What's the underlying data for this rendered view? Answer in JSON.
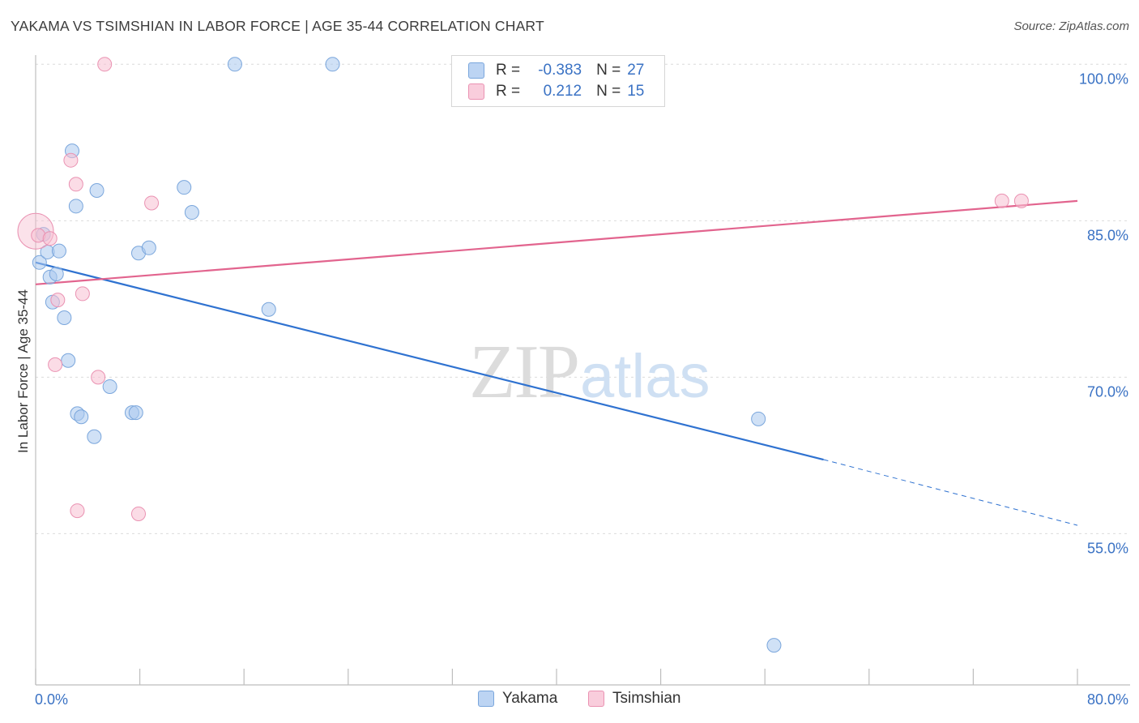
{
  "chart_data": {
    "type": "scatter",
    "title": "YAKAMA VS TSIMSHIAN IN LABOR FORCE | AGE 35-44 CORRELATION CHART",
    "source": "Source: ZipAtlas.com",
    "ylabel": "In Labor Force | Age 35-44",
    "xlabel": "",
    "xlim": [
      0,
      80
    ],
    "ylim": [
      40.5,
      101.5
    ],
    "x_tick_labels": [
      "0.0%",
      "80.0%"
    ],
    "y_ticks": [
      {
        "value": 100,
        "label": "100.0%"
      },
      {
        "value": 85,
        "label": "85.0%"
      },
      {
        "value": 70,
        "label": "70.0%"
      },
      {
        "value": 55,
        "label": "55.0%"
      }
    ],
    "watermark": "ZIPatlas",
    "legend": [
      {
        "name": "Yakama",
        "r_label": "R =",
        "r": "-0.383",
        "n_label": "N =",
        "n": "27"
      },
      {
        "name": "Tsimshian",
        "r_label": "R =",
        "r": "0.212",
        "n_label": "N =",
        "n": "15"
      }
    ],
    "series": [
      {
        "name": "Yakama",
        "color": "#a9c8ee",
        "stroke": "#7aa6dc",
        "line_color": "#2f72d0",
        "trend": {
          "x0": 0,
          "y0": 81.0,
          "x1": 60.5,
          "y1": 62.1,
          "dash_x1": 80,
          "dash_y1": 55.8
        },
        "points": [
          {
            "x": 0.3,
            "y": 81.0
          },
          {
            "x": 0.6,
            "y": 83.7
          },
          {
            "x": 0.9,
            "y": 82.0
          },
          {
            "x": 1.1,
            "y": 79.6
          },
          {
            "x": 1.3,
            "y": 77.2
          },
          {
            "x": 1.6,
            "y": 79.9
          },
          {
            "x": 1.8,
            "y": 82.1
          },
          {
            "x": 2.2,
            "y": 75.7
          },
          {
            "x": 2.5,
            "y": 71.6
          },
          {
            "x": 2.8,
            "y": 91.7
          },
          {
            "x": 3.1,
            "y": 86.4
          },
          {
            "x": 3.2,
            "y": 66.5
          },
          {
            "x": 3.5,
            "y": 66.2
          },
          {
            "x": 4.5,
            "y": 64.3
          },
          {
            "x": 4.7,
            "y": 87.9
          },
          {
            "x": 5.7,
            "y": 69.1
          },
          {
            "x": 7.4,
            "y": 66.6
          },
          {
            "x": 7.7,
            "y": 66.6
          },
          {
            "x": 7.9,
            "y": 81.9
          },
          {
            "x": 8.7,
            "y": 82.4
          },
          {
            "x": 11.4,
            "y": 88.2
          },
          {
            "x": 12.0,
            "y": 85.8
          },
          {
            "x": 15.3,
            "y": 100.0
          },
          {
            "x": 17.9,
            "y": 76.5
          },
          {
            "x": 22.8,
            "y": 100.0
          },
          {
            "x": 55.5,
            "y": 66.0
          },
          {
            "x": 56.7,
            "y": 44.3
          }
        ]
      },
      {
        "name": "Tsimshian",
        "color": "#f7bfd1",
        "stroke": "#ea92b2",
        "line_color": "#e2648e",
        "trend": {
          "x0": 0,
          "y0": 78.9,
          "x1": 80,
          "y1": 86.9
        },
        "points": [
          {
            "x": 0.2,
            "y": 83.6
          },
          {
            "x": 1.1,
            "y": 83.3
          },
          {
            "x": 1.5,
            "y": 71.2
          },
          {
            "x": 1.7,
            "y": 77.4
          },
          {
            "x": 2.7,
            "y": 90.8
          },
          {
            "x": 3.1,
            "y": 88.5
          },
          {
            "x": 3.2,
            "y": 57.2
          },
          {
            "x": 3.6,
            "y": 78.0
          },
          {
            "x": 4.8,
            "y": 70.0
          },
          {
            "x": 5.3,
            "y": 100.0
          },
          {
            "x": 7.9,
            "y": 56.9
          },
          {
            "x": 8.9,
            "y": 86.7
          },
          {
            "x": 74.2,
            "y": 86.9
          },
          {
            "x": 75.7,
            "y": 86.9
          }
        ],
        "large_points": [
          {
            "x": 0.0,
            "y": 84.0
          }
        ]
      }
    ]
  }
}
